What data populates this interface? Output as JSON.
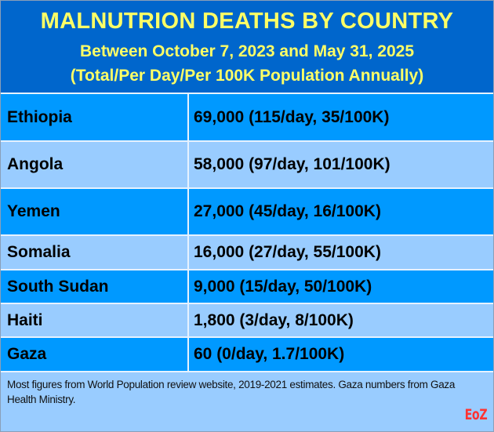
{
  "header": {
    "title": "MALNUTRION DEATHS BY COUNTRY",
    "subtitle_dates": "Between October 7, 2023 and May 31, 2025",
    "subtitle_units": "(Total/Per Day/Per 100K Population Annually)"
  },
  "colors": {
    "header_bg": "#0066cc",
    "header_text": "#ffff66",
    "row_dark": "#0099ff",
    "row_light": "#99ccff",
    "logo": "#ff3333"
  },
  "rows": [
    {
      "country": "Ethiopia",
      "value": "69,000 (115/day, 35/100K)"
    },
    {
      "country": "Angola",
      "value": "58,000 (97/day, 101/100K)"
    },
    {
      "country": "Yemen",
      "value": "27,000 (45/day, 16/100K)"
    },
    {
      "country": "Somalia",
      "value": "16,000 (27/day, 55/100K)"
    },
    {
      "country": "South Sudan",
      "value": "9,000 (15/day, 50/100K)"
    },
    {
      "country": "Haiti",
      "value": "1,800 (3/day, 8/100K)"
    },
    {
      "country": "Gaza",
      "value": "60 (0/day, 1.7/100K)"
    }
  ],
  "footer": {
    "note": "Most figures from World Population review website, 2019-2021 estimates. Gaza numbers from Gaza Health Ministry.",
    "logo": "EoZ"
  }
}
